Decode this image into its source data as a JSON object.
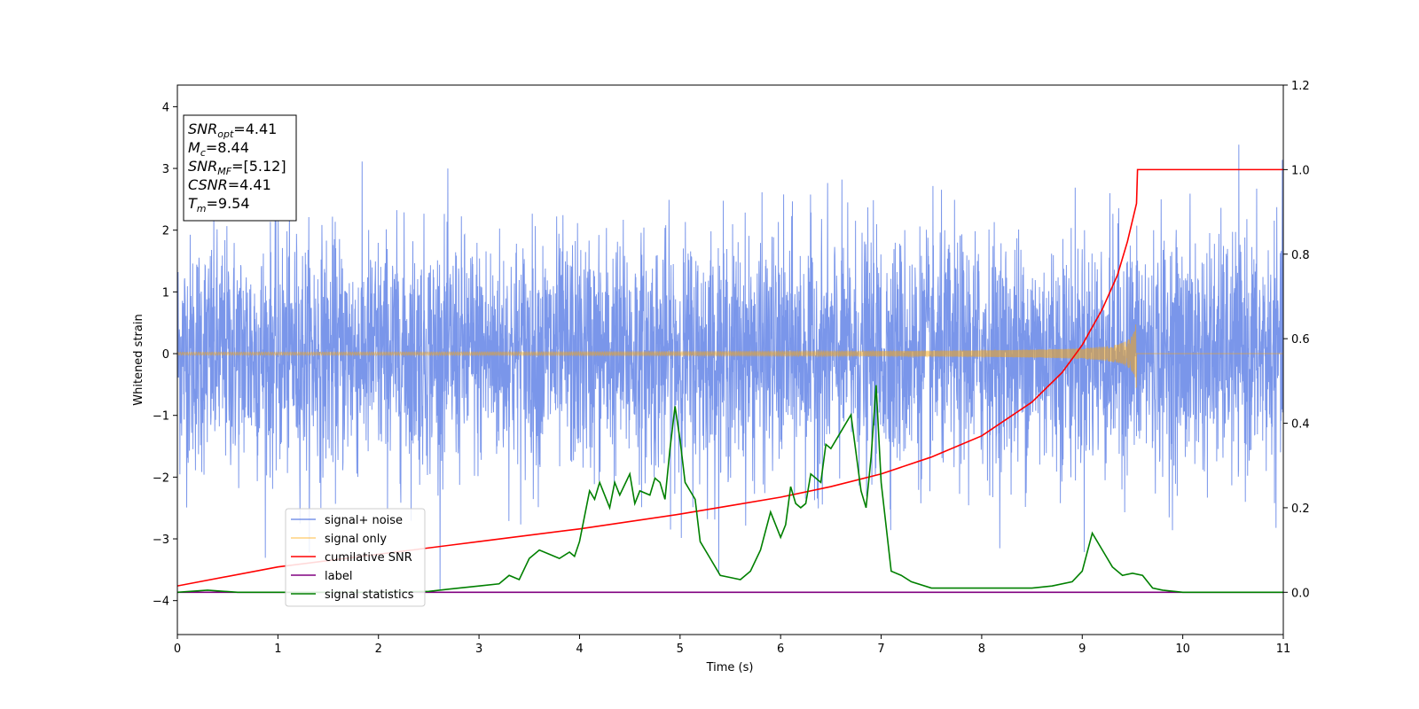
{
  "chart_data": {
    "type": "line",
    "xlabel": "Time (s)",
    "ylabel": "Whitened strain",
    "xlim": [
      0,
      11
    ],
    "ylim": [
      -4.55,
      4.35
    ],
    "y2lim": [
      -0.1,
      1.2
    ],
    "x_ticks": [
      0,
      1,
      2,
      3,
      4,
      5,
      6,
      7,
      8,
      9,
      10,
      11
    ],
    "y_ticks": [
      -4,
      -3,
      -2,
      -1,
      0,
      1,
      2,
      3,
      4
    ],
    "y2_ticks": [
      "0.0",
      "0.2",
      "0.4",
      "0.6",
      "0.8",
      "1.0",
      "1.2"
    ],
    "grid": false,
    "legend_position": "lower-left",
    "annotation": {
      "lines": [
        {
          "main": "SNR",
          "sub": "opt",
          "value": "=4.41"
        },
        {
          "main": "M",
          "sub": "c",
          "value": "=8.44"
        },
        {
          "main": "SNR",
          "sub": "MF",
          "value": "=[5.12]"
        },
        {
          "main": "CSNR",
          "sub": "",
          "value": "=4.41"
        },
        {
          "main": "T",
          "sub": "m",
          "value": "=9.54"
        }
      ]
    },
    "series": [
      {
        "name": "signal+ noise",
        "color": "#4169e1",
        "axis": "left",
        "kind": "noise",
        "std": 0.95,
        "t_end": 11,
        "samples_per_second": 400
      },
      {
        "name": "signal only",
        "color": "#ffa500",
        "axis": "left",
        "kind": "chirp",
        "t_merge": 9.54,
        "amp_start": 0.01,
        "amp_peak": 0.6
      },
      {
        "name": "cumilative SNR",
        "color": "#ff0000",
        "axis": "right",
        "x": [
          0,
          1,
          2,
          3,
          4,
          5,
          5.5,
          6,
          6.5,
          7,
          7.5,
          8,
          8.5,
          8.8,
          9.0,
          9.2,
          9.35,
          9.45,
          9.54,
          9.55,
          11
        ],
        "y": [
          0.015,
          0.06,
          0.09,
          0.12,
          0.15,
          0.185,
          0.205,
          0.225,
          0.25,
          0.28,
          0.32,
          0.37,
          0.45,
          0.52,
          0.585,
          0.67,
          0.75,
          0.83,
          0.92,
          1.0,
          1.0
        ]
      },
      {
        "name": "label",
        "color": "#800080",
        "axis": "right",
        "x": [
          0,
          11
        ],
        "y": [
          0,
          0
        ]
      },
      {
        "name": "signal statistics",
        "color": "#008000",
        "axis": "right",
        "x": [
          0,
          0.3,
          0.6,
          1,
          1.5,
          2,
          2.5,
          2.8,
          3.0,
          3.2,
          3.3,
          3.4,
          3.5,
          3.6,
          3.7,
          3.8,
          3.9,
          3.95,
          4.0,
          4.1,
          4.15,
          4.2,
          4.3,
          4.35,
          4.4,
          4.5,
          4.55,
          4.6,
          4.7,
          4.75,
          4.8,
          4.85,
          4.9,
          4.95,
          5.0,
          5.05,
          5.1,
          5.15,
          5.2,
          5.3,
          5.4,
          5.5,
          5.6,
          5.7,
          5.8,
          5.9,
          6.0,
          6.05,
          6.1,
          6.15,
          6.2,
          6.25,
          6.3,
          6.4,
          6.45,
          6.5,
          6.6,
          6.7,
          6.8,
          6.85,
          6.9,
          6.95,
          7.0,
          7.1,
          7.2,
          7.3,
          7.5,
          7.7,
          8.0,
          8.3,
          8.5,
          8.7,
          8.9,
          9.0,
          9.1,
          9.2,
          9.3,
          9.4,
          9.5,
          9.6,
          9.7,
          9.8,
          10,
          10.5,
          11
        ],
        "y": [
          0.0,
          0.005,
          0.0,
          0.0,
          0.0,
          0.0,
          0.002,
          0.01,
          0.015,
          0.02,
          0.04,
          0.03,
          0.08,
          0.1,
          0.09,
          0.08,
          0.095,
          0.085,
          0.12,
          0.24,
          0.22,
          0.26,
          0.2,
          0.26,
          0.23,
          0.28,
          0.21,
          0.24,
          0.23,
          0.27,
          0.26,
          0.22,
          0.34,
          0.44,
          0.36,
          0.26,
          0.24,
          0.22,
          0.12,
          0.08,
          0.04,
          0.035,
          0.03,
          0.05,
          0.1,
          0.19,
          0.13,
          0.16,
          0.25,
          0.21,
          0.2,
          0.21,
          0.28,
          0.26,
          0.35,
          0.34,
          0.38,
          0.42,
          0.24,
          0.2,
          0.32,
          0.49,
          0.26,
          0.05,
          0.04,
          0.025,
          0.01,
          0.01,
          0.01,
          0.01,
          0.01,
          0.015,
          0.025,
          0.05,
          0.14,
          0.1,
          0.06,
          0.04,
          0.045,
          0.04,
          0.01,
          0.005,
          0.0,
          0.0,
          0.0
        ]
      }
    ]
  }
}
